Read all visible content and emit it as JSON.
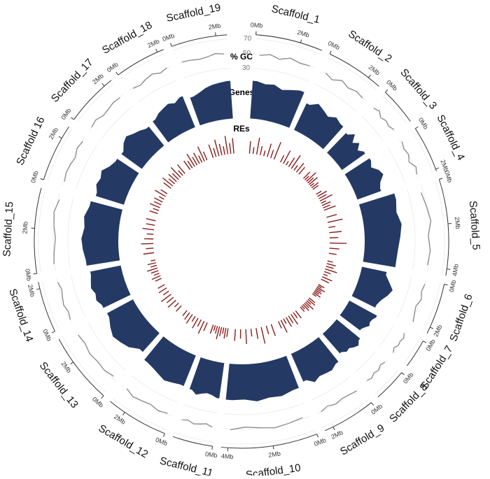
{
  "chart_data": {
    "type": "circos",
    "scaffolds": [
      {
        "name": "Scaffold_1",
        "length": 3.0,
        "ticks": [
          {
            "value": 0,
            "label": "0Mb"
          },
          {
            "value": 2,
            "label": "2Mb"
          }
        ]
      },
      {
        "name": "Scaffold_2",
        "length": 2.6,
        "ticks": [
          {
            "value": 0,
            "label": "0Mb"
          },
          {
            "value": 2,
            "label": "2Mb"
          }
        ]
      },
      {
        "name": "Scaffold_3",
        "length": 1.7,
        "ticks": [
          {
            "value": 0,
            "label": "0Mb"
          }
        ]
      },
      {
        "name": "Scaffold_4",
        "length": 2.1,
        "ticks": [
          {
            "value": 0,
            "label": "0Mb"
          },
          {
            "value": 2,
            "label": "2Mb"
          }
        ]
      },
      {
        "name": "Scaffold_5",
        "length": 4.3,
        "ticks": [
          {
            "value": 0,
            "label": "0Mb"
          },
          {
            "value": 2,
            "label": "2Mb"
          },
          {
            "value": 4,
            "label": "4Mb"
          }
        ]
      },
      {
        "name": "Scaffold_6",
        "length": 2.3,
        "ticks": [
          {
            "value": 0,
            "label": "0Mb"
          },
          {
            "value": 2,
            "label": "2Mb"
          }
        ]
      },
      {
        "name": "Scaffold_7",
        "length": 1.3,
        "ticks": [
          {
            "value": 0,
            "label": "0Mb"
          }
        ]
      },
      {
        "name": "Scaffold_8",
        "length": 1.5,
        "ticks": [
          {
            "value": 0,
            "label": "0Mb"
          }
        ]
      },
      {
        "name": "Scaffold_9",
        "length": 2.4,
        "ticks": [
          {
            "value": 0,
            "label": "0Mb"
          },
          {
            "value": 2,
            "label": "2Mb"
          }
        ]
      },
      {
        "name": "Scaffold_10",
        "length": 4.3,
        "ticks": [
          {
            "value": 0,
            "label": "0Mb"
          },
          {
            "value": 2,
            "label": "2Mb"
          },
          {
            "value": 4,
            "label": "4Mb"
          }
        ]
      },
      {
        "name": "Scaffold_11",
        "length": 1.8,
        "ticks": [
          {
            "value": 0,
            "label": "0Mb"
          }
        ]
      },
      {
        "name": "Scaffold_12",
        "length": 2.8,
        "ticks": [
          {
            "value": 0,
            "label": "0Mb"
          },
          {
            "value": 2,
            "label": "2Mb"
          }
        ]
      },
      {
        "name": "Scaffold_13",
        "length": 3.2,
        "ticks": [
          {
            "value": 0,
            "label": "0Mb"
          },
          {
            "value": 2,
            "label": "2Mb"
          }
        ]
      },
      {
        "name": "Scaffold_14",
        "length": 2.3,
        "ticks": [
          {
            "value": 0,
            "label": "0Mb"
          },
          {
            "value": 2,
            "label": "2Mb"
          }
        ]
      },
      {
        "name": "Scaffold_15",
        "length": 3.8,
        "ticks": [
          {
            "value": 0,
            "label": "0Mb"
          },
          {
            "value": 2,
            "label": "2Mb"
          }
        ]
      },
      {
        "name": "Scaffold 16",
        "length": 2.6,
        "ticks": [
          {
            "value": 0,
            "label": "0Mb"
          },
          {
            "value": 2,
            "label": "2Mb"
          }
        ]
      },
      {
        "name": "Scaffold_17",
        "length": 2.4,
        "ticks": [
          {
            "value": 0,
            "label": "0Mb"
          },
          {
            "value": 2,
            "label": "2Mb"
          }
        ]
      },
      {
        "name": "Scaffold_18",
        "length": 2.3,
        "ticks": [
          {
            "value": 0,
            "label": "0Mb"
          },
          {
            "value": 2,
            "label": "2Mb"
          }
        ]
      },
      {
        "name": "Scaffold_19",
        "length": 2.5,
        "ticks": [
          {
            "value": 0,
            "label": "0Mb"
          },
          {
            "value": 2,
            "label": "2Mb"
          }
        ]
      }
    ],
    "series": [
      {
        "name": "% GC",
        "color": "#8a8a8a",
        "ylim": [
          30,
          70
        ],
        "yticks": [
          30,
          50,
          70
        ],
        "values": [
          [
            48,
            51,
            47,
            52,
            49,
            50
          ],
          [
            50,
            46,
            52,
            48,
            51,
            49
          ],
          [
            49,
            52,
            47,
            50,
            48,
            51
          ],
          [
            51,
            48,
            50,
            46,
            52,
            49
          ],
          [
            47,
            50,
            53,
            48,
            51,
            49
          ],
          [
            50,
            48,
            51,
            47,
            49,
            52
          ],
          [
            48,
            51,
            49,
            50,
            47,
            50
          ],
          [
            49,
            47,
            50,
            48,
            51,
            49
          ],
          [
            51,
            49,
            48,
            50,
            47,
            50
          ],
          [
            48,
            50,
            52,
            49,
            47,
            51
          ],
          [
            50,
            47,
            49,
            51,
            48,
            50
          ],
          [
            49,
            51,
            48,
            50,
            52,
            48
          ],
          [
            47,
            50,
            49,
            51,
            48,
            50
          ],
          [
            50,
            48,
            51,
            49,
            47,
            50
          ],
          [
            51,
            49,
            47,
            50,
            52,
            48
          ],
          [
            48,
            50,
            49,
            47,
            51,
            49
          ],
          [
            50,
            52,
            48,
            49,
            51,
            50
          ],
          [
            49,
            47,
            50,
            52,
            48,
            51
          ],
          [
            51,
            50,
            48,
            49,
            52,
            50
          ]
        ]
      },
      {
        "name": "Genes",
        "color": "#243a64",
        "ylim": [
          0,
          100
        ],
        "values": [
          [
            90,
            85,
            88,
            80,
            86,
            92
          ],
          [
            70,
            82,
            75,
            68,
            78,
            72
          ],
          [
            65,
            78,
            60,
            72,
            58,
            68
          ],
          [
            70,
            62,
            75,
            80,
            66,
            60
          ],
          [
            88,
            82,
            90,
            85,
            80,
            78
          ],
          [
            60,
            72,
            85,
            78,
            68,
            62
          ],
          [
            75,
            70,
            68,
            72,
            65,
            60
          ],
          [
            72,
            80,
            75,
            68,
            70,
            62
          ],
          [
            75,
            82,
            80,
            78,
            85,
            72
          ],
          [
            82,
            88,
            85,
            90,
            84,
            86
          ],
          [
            85,
            80,
            78,
            82,
            88,
            80
          ],
          [
            78,
            82,
            86,
            80,
            75,
            72
          ],
          [
            60,
            75,
            82,
            88,
            80,
            70
          ],
          [
            72,
            80,
            76,
            82,
            78,
            74
          ],
          [
            80,
            85,
            88,
            82,
            86,
            78
          ],
          [
            70,
            78,
            74,
            80,
            68,
            62
          ],
          [
            60,
            72,
            78,
            70,
            65,
            58
          ],
          [
            62,
            70,
            74,
            78,
            72,
            80
          ],
          [
            70,
            75,
            82,
            86,
            88,
            90
          ]
        ]
      },
      {
        "name": "REs",
        "color": "#8b1c1c",
        "ylim": [
          0,
          100
        ],
        "values": [
          [
            40,
            22,
            55,
            30,
            18,
            45,
            28,
            60
          ],
          [
            25,
            48,
            15,
            35,
            52,
            20,
            38,
            30
          ],
          [
            30,
            18,
            42,
            25,
            36,
            15,
            28,
            22
          ],
          [
            20,
            35,
            28,
            45,
            18,
            30,
            24,
            40
          ],
          [
            35,
            50,
            22,
            40,
            28,
            55,
            32,
            25
          ],
          [
            18,
            30,
            25,
            40,
            22,
            15,
            35,
            28
          ],
          [
            22,
            15,
            30,
            20,
            25,
            18,
            28,
            15
          ],
          [
            25,
            30,
            18,
            35,
            22,
            28,
            15,
            20
          ],
          [
            30,
            22,
            40,
            28,
            35,
            18,
            45,
            25
          ],
          [
            40,
            28,
            55,
            35,
            25,
            48,
            30,
            38
          ],
          [
            28,
            35,
            20,
            30,
            42,
            25,
            18,
            30
          ],
          [
            30,
            45,
            25,
            38,
            20,
            35,
            28,
            22
          ],
          [
            25,
            18,
            35,
            28,
            40,
            22,
            30,
            25
          ],
          [
            22,
            30,
            18,
            25,
            35,
            20,
            28,
            15
          ],
          [
            35,
            25,
            40,
            30,
            22,
            38,
            28,
            32
          ],
          [
            28,
            20,
            35,
            25,
            30,
            18,
            40,
            25
          ],
          [
            30,
            42,
            25,
            35,
            28,
            45,
            22,
            38
          ],
          [
            35,
            28,
            48,
            30,
            40,
            25,
            52,
            30
          ],
          [
            45,
            30,
            55,
            38,
            28,
            60,
            35,
            50
          ]
        ]
      }
    ]
  }
}
